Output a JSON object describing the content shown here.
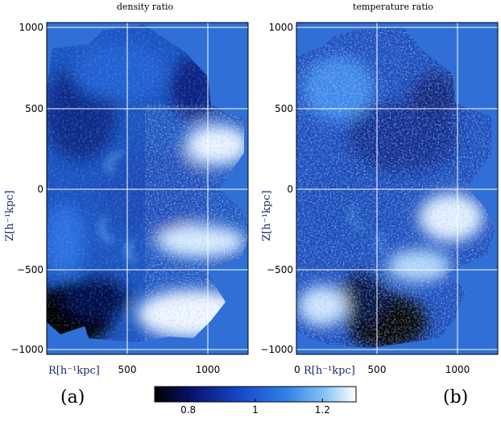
{
  "figure": {
    "panel_a_title": "density ratio",
    "panel_b_title": "temperature ratio",
    "panel_a_label": "(a)",
    "panel_b_label": "(b)"
  },
  "chart_data": [
    {
      "type": "heatmap",
      "title": "density ratio",
      "xlabel": "R[h⁻¹kpc]",
      "ylabel": "Z[h⁻¹kpc]",
      "xlim": [
        0,
        1250
      ],
      "ylim": [
        -1020,
        1020
      ],
      "xticks": [
        "500",
        "1000"
      ],
      "yticks": [
        "1000",
        "500",
        "0",
        "−500",
        "−1000"
      ],
      "grid": true
    },
    {
      "type": "heatmap",
      "title": "temperature ratio",
      "xlabel": "R[h⁻¹kpc]",
      "ylabel": "Z[h⁻¹kpc]",
      "xlim": [
        0,
        1250
      ],
      "ylim": [
        -1020,
        1020
      ],
      "xticks": [
        "0",
        "500",
        "1000"
      ],
      "yticks": [
        "1000",
        "500",
        "0",
        "−500",
        "−1000"
      ],
      "grid": true
    }
  ],
  "colorbar": {
    "ticks": [
      "0.8",
      "1",
      "1.2"
    ],
    "tick_values": [
      0.8,
      1.0,
      1.2
    ],
    "range": [
      0.7,
      1.3
    ],
    "colors": [
      "#000000",
      "#07126a",
      "#1746c8",
      "#2f80e8",
      "#88c6f4",
      "#ffffff"
    ]
  },
  "colors": {
    "background_field": "#2f6fd6",
    "grid": "#ffffff"
  }
}
